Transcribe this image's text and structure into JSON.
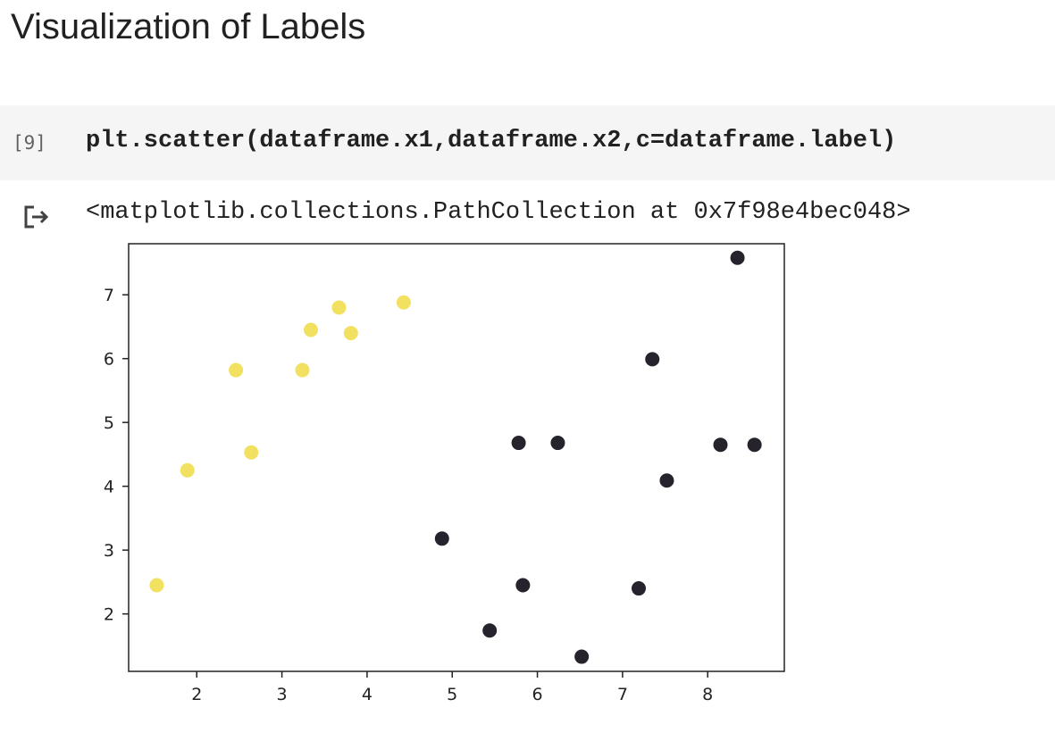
{
  "page": {
    "heading": "Visualization of Labels"
  },
  "cell": {
    "execution_count": "[9]",
    "code": "plt.scatter(dataframe.x1,dataframe.x2,c=dataframe.label)",
    "output_icon": "output-arrow-icon",
    "output_text": "<matplotlib.collections.PathCollection at 0x7f98e4bec048>"
  },
  "colors": {
    "label_0": "#26232d",
    "label_1": "#f2e060",
    "cell_background": "#f5f5f5"
  },
  "chart_data": {
    "type": "scatter",
    "title": "",
    "xlabel": "",
    "ylabel": "",
    "xlim": [
      1.2,
      8.9
    ],
    "ylim": [
      1.1,
      7.8
    ],
    "xticks": [
      2,
      3,
      4,
      5,
      6,
      7,
      8
    ],
    "yticks": [
      2,
      3,
      4,
      5,
      6,
      7
    ],
    "grid": false,
    "legend": false,
    "points": [
      {
        "x": 1.53,
        "y": 2.45,
        "label": 1
      },
      {
        "x": 1.89,
        "y": 4.25,
        "label": 1
      },
      {
        "x": 2.46,
        "y": 5.82,
        "label": 1
      },
      {
        "x": 2.64,
        "y": 4.53,
        "label": 1
      },
      {
        "x": 3.24,
        "y": 5.82,
        "label": 1
      },
      {
        "x": 3.34,
        "y": 6.45,
        "label": 1
      },
      {
        "x": 3.67,
        "y": 6.8,
        "label": 1
      },
      {
        "x": 3.81,
        "y": 6.4,
        "label": 1
      },
      {
        "x": 4.43,
        "y": 6.88,
        "label": 1
      },
      {
        "x": 4.88,
        "y": 3.18,
        "label": 0
      },
      {
        "x": 5.44,
        "y": 1.74,
        "label": 0
      },
      {
        "x": 5.78,
        "y": 4.68,
        "label": 0
      },
      {
        "x": 5.83,
        "y": 2.45,
        "label": 0
      },
      {
        "x": 6.24,
        "y": 4.68,
        "label": 0
      },
      {
        "x": 6.52,
        "y": 1.33,
        "label": 0
      },
      {
        "x": 7.19,
        "y": 2.4,
        "label": 0
      },
      {
        "x": 7.35,
        "y": 5.99,
        "label": 0
      },
      {
        "x": 7.52,
        "y": 4.09,
        "label": 0
      },
      {
        "x": 8.15,
        "y": 4.65,
        "label": 0
      },
      {
        "x": 8.35,
        "y": 7.58,
        "label": 0
      },
      {
        "x": 8.55,
        "y": 4.65,
        "label": 0
      }
    ]
  }
}
